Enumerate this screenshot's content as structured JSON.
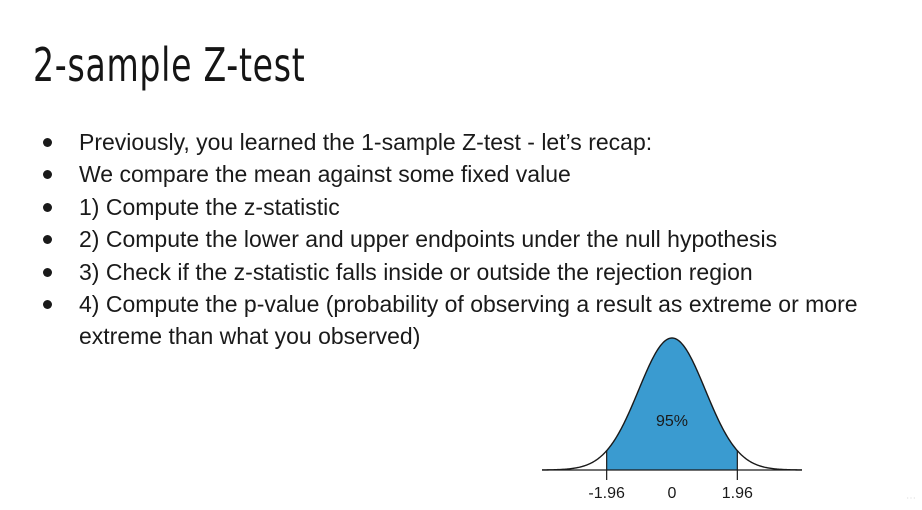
{
  "slide": {
    "title": "2-sample Z-test",
    "bullets": [
      "Previously, you learned the 1-sample Z-test - let’s recap:",
      "We compare the mean against some fixed value",
      "1) Compute the z-statistic",
      "2) Compute the lower and upper endpoints under the null hypothesis",
      "3) Check if the z-statistic falls inside or outside the rejection region",
      "4) Compute the p-value (probability of observing a result as extreme or more extreme than what you observed)"
    ]
  },
  "chart_data": {
    "type": "area",
    "distribution": "standard normal",
    "x_range": [
      -3.9,
      3.9
    ],
    "shaded_region": [
      -1.96,
      1.96
    ],
    "shaded_label": "95%",
    "tick_values": [
      -1.96,
      0,
      1.96
    ],
    "tick_labels": [
      "-1.96",
      "0",
      "1.96"
    ],
    "title": "",
    "xlabel": "",
    "ylabel": "",
    "fill_color": "#3a9bd0",
    "line_color": "#1a1a1a",
    "grid": false
  }
}
